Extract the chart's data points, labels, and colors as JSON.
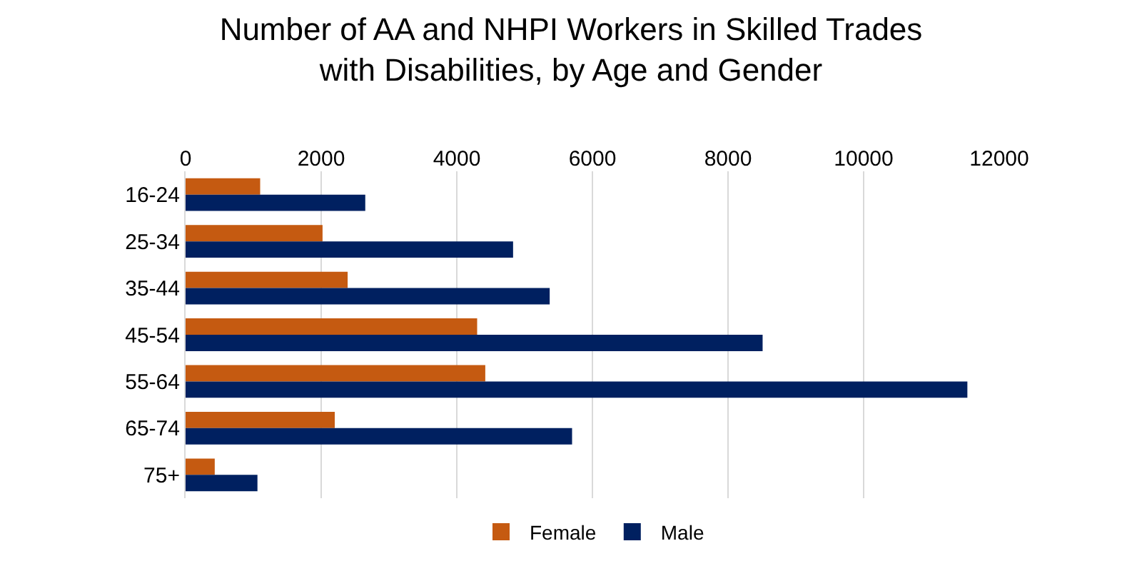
{
  "chart_data": {
    "type": "bar",
    "orientation": "horizontal",
    "title": "Number of AA and NHPI Workers in Skilled Trades\nwith Disabilities, by Age and Gender",
    "categories": [
      "16-24",
      "25-34",
      "35-44",
      "45-54",
      "55-64",
      "65-74",
      "75+"
    ],
    "series": [
      {
        "name": "Female",
        "color": "#c55a11",
        "values": [
          1100,
          2020,
          2390,
          4300,
          4420,
          2200,
          430
        ]
      },
      {
        "name": "Male",
        "color": "#002060",
        "values": [
          2650,
          4830,
          5370,
          8510,
          11530,
          5700,
          1060
        ]
      }
    ],
    "xlim": [
      0,
      12000
    ],
    "xticks": [
      0,
      2000,
      4000,
      6000,
      8000,
      10000,
      12000
    ],
    "grid": "x",
    "legend": "bottom"
  }
}
